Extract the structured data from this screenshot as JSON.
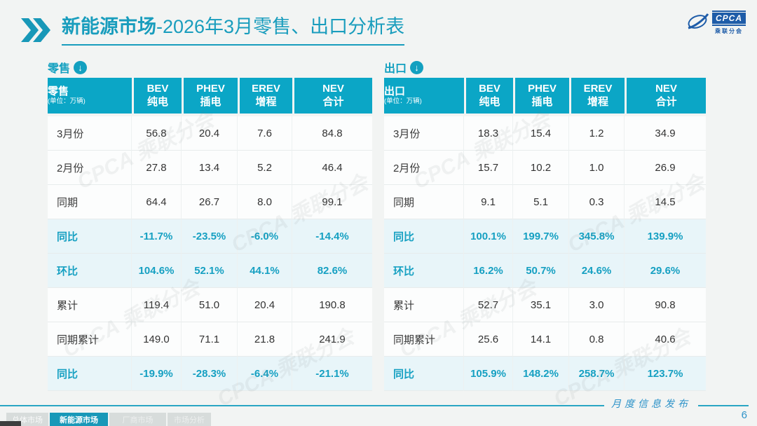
{
  "title": {
    "prefix": "新能源市场",
    "suffix": "-2026年3月零售、出口分析表"
  },
  "logo": {
    "acronym": "CPCA",
    "org": "乘联分会"
  },
  "watermark": {
    "text": "CPCA 乘联分会"
  },
  "tables": [
    {
      "section": "零售",
      "unit": "(单位：万辆)",
      "columns": [
        {
          "en": "BEV",
          "zh": "纯电"
        },
        {
          "en": "PHEV",
          "zh": "插电"
        },
        {
          "en": "EREV",
          "zh": "增程"
        },
        {
          "en": "NEV",
          "zh": "合计"
        }
      ],
      "rows": [
        {
          "label": "3月份",
          "values": [
            "56.8",
            "20.4",
            "7.6",
            "84.8"
          ],
          "highlight": false
        },
        {
          "label": "2月份",
          "values": [
            "27.8",
            "13.4",
            "5.2",
            "46.4"
          ],
          "highlight": false
        },
        {
          "label": "同期",
          "values": [
            "64.4",
            "26.7",
            "8.0",
            "99.1"
          ],
          "highlight": false
        },
        {
          "label": "同比",
          "values": [
            "-11.7%",
            "-23.5%",
            "-6.0%",
            "-14.4%"
          ],
          "highlight": true
        },
        {
          "label": "环比",
          "values": [
            "104.6%",
            "52.1%",
            "44.1%",
            "82.6%"
          ],
          "highlight": true
        },
        {
          "label": "累计",
          "values": [
            "119.4",
            "51.0",
            "20.4",
            "190.8"
          ],
          "highlight": false
        },
        {
          "label": "同期累计",
          "values": [
            "149.0",
            "71.1",
            "21.8",
            "241.9"
          ],
          "highlight": false
        },
        {
          "label": "同比",
          "values": [
            "-19.9%",
            "-28.3%",
            "-6.4%",
            "-21.1%"
          ],
          "highlight": true
        }
      ]
    },
    {
      "section": "出口",
      "unit": "(单位：万辆)",
      "columns": [
        {
          "en": "BEV",
          "zh": "纯电"
        },
        {
          "en": "PHEV",
          "zh": "插电"
        },
        {
          "en": "EREV",
          "zh": "增程"
        },
        {
          "en": "NEV",
          "zh": "合计"
        }
      ],
      "rows": [
        {
          "label": "3月份",
          "values": [
            "18.3",
            "15.4",
            "1.2",
            "34.9"
          ],
          "highlight": false
        },
        {
          "label": "2月份",
          "values": [
            "15.7",
            "10.2",
            "1.0",
            "26.9"
          ],
          "highlight": false
        },
        {
          "label": "同期",
          "values": [
            "9.1",
            "5.1",
            "0.3",
            "14.5"
          ],
          "highlight": false
        },
        {
          "label": "同比",
          "values": [
            "100.1%",
            "199.7%",
            "345.8%",
            "139.9%"
          ],
          "highlight": true
        },
        {
          "label": "环比",
          "values": [
            "16.2%",
            "50.7%",
            "24.6%",
            "29.6%"
          ],
          "highlight": true
        },
        {
          "label": "累计",
          "values": [
            "52.7",
            "35.1",
            "3.0",
            "90.8"
          ],
          "highlight": false
        },
        {
          "label": "同期累计",
          "values": [
            "25.6",
            "14.1",
            "0.8",
            "40.6"
          ],
          "highlight": false
        },
        {
          "label": "同比",
          "values": [
            "105.9%",
            "148.2%",
            "258.7%",
            "123.7%"
          ],
          "highlight": true
        }
      ]
    }
  ],
  "footer": {
    "tabs": [
      {
        "label": "总体市场",
        "active": false
      },
      {
        "label": "新能源市场",
        "active": true
      },
      {
        "label": "厂商市场",
        "active": false
      },
      {
        "label": "市场分析",
        "active": false
      }
    ],
    "publish_label": "月度信息发布",
    "page_number": "6"
  },
  "colors": {
    "teal_title": "#199dbd",
    "header_bg": "#0ba6c6",
    "highlight_bg": "#e8f5f9",
    "highlight_text": "#16a0c2",
    "footer_line": "#2aa6c4",
    "logo_blue": "#1e5ca8",
    "page_bg": "#f2f4f3"
  }
}
